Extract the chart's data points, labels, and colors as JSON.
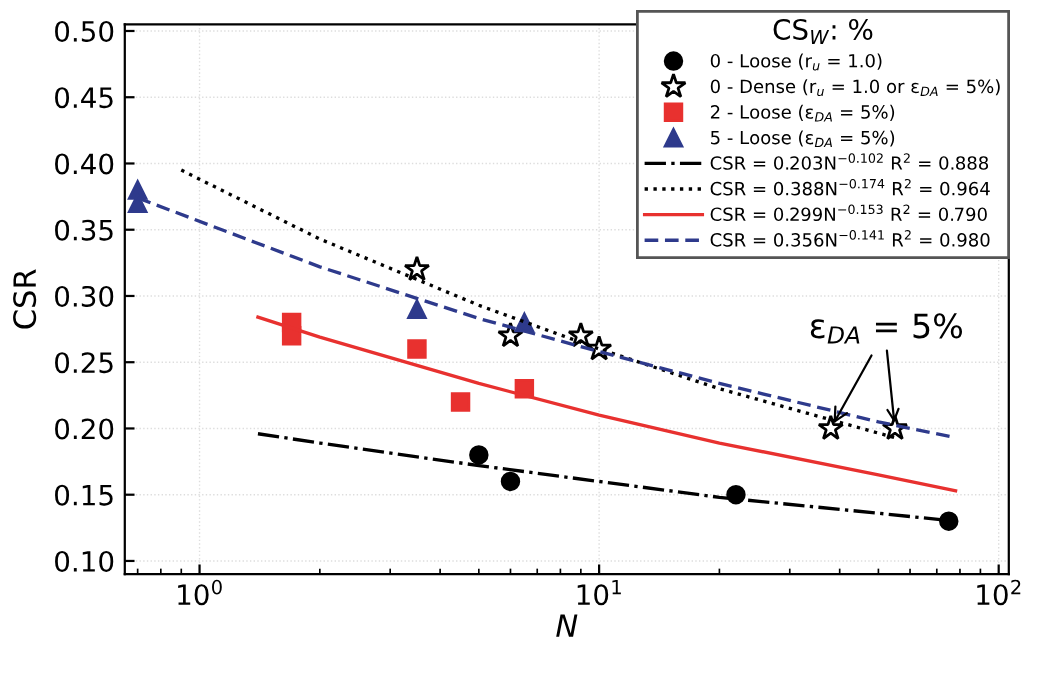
{
  "chart_data": {
    "type": "scatter",
    "xlabel": "N",
    "ylabel": "CSR",
    "legend_title": "CS$_{W}$: %",
    "log": "x",
    "grid": true,
    "legend": "top right",
    "xlim": [
      0.65,
      106
    ],
    "ylim": [
      0.09,
      0.505
    ],
    "xticks": [
      {
        "value": 1,
        "label": "10$^{0}$"
      },
      {
        "value": 10,
        "label": "10$^{1}$"
      },
      {
        "value": 100,
        "label": "10$^{2}$"
      }
    ],
    "yticks": [
      {
        "value": 0.1,
        "label": "0.10"
      },
      {
        "value": 0.15,
        "label": "0.15"
      },
      {
        "value": 0.2,
        "label": "0.20"
      },
      {
        "value": 0.25,
        "label": "0.25"
      },
      {
        "value": 0.3,
        "label": "0.30"
      },
      {
        "value": 0.35,
        "label": "0.35"
      },
      {
        "value": 0.4,
        "label": "0.40"
      },
      {
        "value": 0.45,
        "label": "0.45"
      },
      {
        "value": 0.5,
        "label": "0.50"
      }
    ],
    "series": [
      {
        "name": "0 - Loose (r$_{u}$ = 1.0)",
        "marker": "circle",
        "color": "#000000",
        "x": [
          5,
          6,
          22,
          75
        ],
        "values": [
          0.18,
          0.16,
          0.15,
          0.13
        ]
      },
      {
        "name": "0 - Dense (r$_{u}$ = 1.0 or ε$_{DA}$ = 5%)",
        "marker": "star",
        "color": "#000000",
        "x": [
          3.5,
          6,
          9,
          10,
          38,
          55
        ],
        "values": [
          0.32,
          0.27,
          0.27,
          0.26,
          0.2,
          0.2
        ]
      },
      {
        "name": "2 - Loose (ε$_{DA}$ = 5%)",
        "marker": "square",
        "color": "#e8312f",
        "x": [
          1.7,
          1.7,
          3.5,
          4.5,
          6.5
        ],
        "values": [
          0.28,
          0.27,
          0.26,
          0.22,
          0.23
        ]
      },
      {
        "name": "5 - Loose (ε$_{DA}$ = 5%)",
        "marker": "triangle",
        "color": "#2e3a8c",
        "x": [
          0.7,
          0.7,
          3.5,
          6.5
        ],
        "values": [
          0.38,
          0.37,
          0.29,
          0.28
        ]
      },
      {
        "name": "CSR = 0.203N$^{−0.102}$ R$^{2}$ = 0.888",
        "type": "line",
        "line_style": "dashdot",
        "color": "#000000",
        "x": [
          1.4,
          2,
          5,
          10,
          20,
          50,
          78
        ],
        "values": [
          0.196,
          0.189,
          0.172,
          0.16,
          0.148,
          0.136,
          0.13
        ]
      },
      {
        "name": "CSR = 0.388N$^{−0.174}$ R$^{2}$ = 0.964",
        "type": "line",
        "line_style": "dotted",
        "color": "#000000",
        "x": [
          0.9,
          2,
          5,
          10,
          20,
          55
        ],
        "values": [
          0.395,
          0.343,
          0.293,
          0.26,
          0.23,
          0.193
        ]
      },
      {
        "name": "CSR = 0.299N$^{−0.153}$ R$^{2}$ = 0.790",
        "type": "line",
        "line_style": "solid",
        "color": "#e8312f",
        "x": [
          1.4,
          2,
          5,
          10,
          20,
          50,
          78
        ],
        "values": [
          0.284,
          0.269,
          0.234,
          0.21,
          0.189,
          0.165,
          0.153
        ]
      },
      {
        "name": "CSR = 0.356N$^{−0.141}$ R$^{2}$ = 0.980",
        "type": "line",
        "line_style": "dashed",
        "color": "#2e3a8c",
        "x": [
          0.7,
          2,
          5,
          10,
          20,
          50,
          78
        ],
        "values": [
          0.374,
          0.322,
          0.283,
          0.258,
          0.234,
          0.205,
          0.193
        ]
      }
    ],
    "annotations": [
      {
        "text": "ε$_{DA}$ = 5%",
        "x": 38,
        "y": 0.2
      }
    ]
  }
}
